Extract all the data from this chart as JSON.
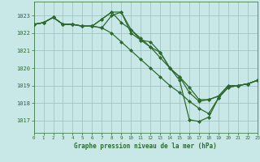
{
  "title": "Graphe pression niveau de la mer (hPa)",
  "bg_color": "#c8e8e8",
  "grid_color": "#a0c4c4",
  "line_color": "#2d6a2d",
  "xlim": [
    0,
    23
  ],
  "ylim": [
    1016.3,
    1023.8
  ],
  "yticks": [
    1017,
    1018,
    1019,
    1020,
    1021,
    1022,
    1023
  ],
  "xticks": [
    0,
    1,
    2,
    3,
    4,
    5,
    6,
    7,
    8,
    9,
    10,
    11,
    12,
    13,
    14,
    15,
    16,
    17,
    18,
    19,
    20,
    21,
    22,
    23
  ],
  "series": [
    [
      1022.5,
      1022.6,
      1022.9,
      1022.5,
      1022.5,
      1022.4,
      1022.4,
      1022.8,
      1023.2,
      1023.2,
      1022.2,
      1021.6,
      1021.5,
      1020.9,
      1020.0,
      1019.5,
      1018.6,
      1018.1,
      1018.2,
      1018.4,
      1019.0,
      1019.0,
      1019.1,
      1019.3
    ],
    [
      1022.5,
      1022.6,
      1022.9,
      1022.5,
      1022.5,
      1022.4,
      1022.4,
      1022.8,
      1023.2,
      1022.6,
      1022.2,
      1021.7,
      1021.2,
      1020.6,
      1020.0,
      1019.5,
      1018.9,
      1018.2,
      1018.2,
      1018.4,
      1019.0,
      1019.0,
      1019.1,
      1019.3
    ],
    [
      1022.5,
      1022.6,
      1022.9,
      1022.5,
      1022.5,
      1022.4,
      1022.4,
      1022.3,
      1023.0,
      1023.2,
      1022.0,
      1021.6,
      1021.2,
      1020.9,
      1020.0,
      1019.3,
      1017.05,
      1016.95,
      1017.2,
      1018.3,
      1018.9,
      1019.0,
      1019.1,
      1019.3
    ],
    [
      1022.5,
      1022.6,
      1022.9,
      1022.5,
      1022.5,
      1022.4,
      1022.4,
      1022.3,
      1022.0,
      1021.5,
      1021.0,
      1020.5,
      1020.0,
      1019.5,
      1019.0,
      1018.6,
      1018.1,
      1017.7,
      1017.4,
      1018.3,
      1018.9,
      1019.0,
      1019.1,
      1019.3
    ]
  ]
}
